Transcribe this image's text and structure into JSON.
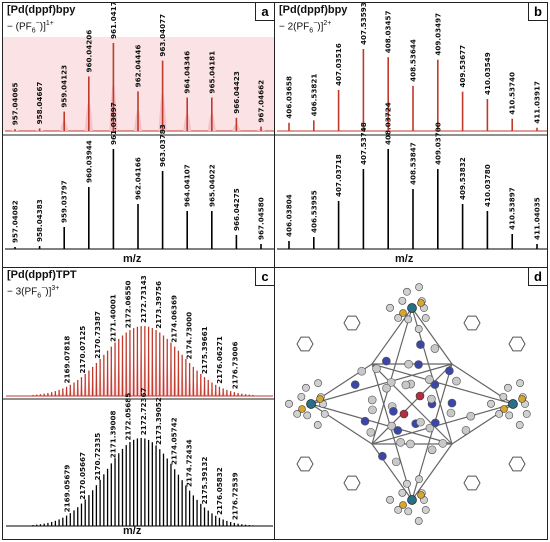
{
  "panels": {
    "a": {
      "letter": "a",
      "title": "[Pd(dppf)bpy",
      "subtitle_pre": "− (PF",
      "subtitle_sub": "6",
      "subtitle_sup_minus": "−",
      "subtitle_post": ")]",
      "charge": "1+"
    },
    "b": {
      "letter": "b",
      "title": "[Pd(dppf)bpy",
      "subtitle_pre": "− 2(PF",
      "subtitle_sub": "6",
      "subtitle_sup_minus": "−",
      "subtitle_post": ")]",
      "charge": "2+"
    },
    "c": {
      "letter": "c",
      "title": "[Pd(dppf)TPT",
      "subtitle_pre": "− 3(PF",
      "subtitle_sub": "6",
      "subtitle_sup_minus": "−",
      "subtitle_post": ")]",
      "charge": "3+"
    },
    "d": {
      "letter": "d"
    }
  },
  "xlabel": "m/z",
  "colors": {
    "experimental": "#c0392b",
    "simulated": "#000000",
    "fill": "#f4c2c6"
  },
  "chart_data": [
    {
      "type": "bar",
      "panel": "a",
      "trace": "experimental",
      "x": [
        957.04065,
        958.04667,
        959.04123,
        960.04206,
        961.04171,
        962.04446,
        963.04077,
        964.04346,
        965.04181,
        966.04423,
        967.04662
      ],
      "values": [
        2,
        3,
        22,
        62,
        100,
        45,
        80,
        38,
        38,
        15,
        5
      ],
      "labels": [
        "957.04065",
        "958.04667",
        "959.04123",
        "960.04206",
        "961.04171",
        "962.04446",
        "963.04077",
        "964.04346",
        "965.04181",
        "966.04423",
        "967.04662"
      ],
      "xlabel": "",
      "ylabel": ""
    },
    {
      "type": "bar",
      "panel": "a",
      "trace": "simulated",
      "x": [
        957.04082,
        958.04383,
        959.03797,
        960.03944,
        961.03897,
        962.04166,
        963.03783,
        964.04107,
        965.04022,
        966.04275,
        967.0458
      ],
      "values": [
        2,
        3,
        22,
        62,
        100,
        45,
        78,
        38,
        38,
        14,
        5
      ],
      "labels": [
        "957.04082",
        "958.04383",
        "959.03797",
        "960.03944",
        "961.03897",
        "962.04166",
        "963.03783",
        "964.04107",
        "965.04022",
        "966.04275",
        "967.04580"
      ],
      "xlabel": "m/z",
      "ylabel": ""
    },
    {
      "type": "bar",
      "panel": "b",
      "trace": "experimental",
      "x": [
        406.03658,
        406.53821,
        407.03516,
        407.53593,
        408.03457,
        408.53644,
        409.03497,
        409.53677,
        410.03549,
        410.5374,
        411.03917
      ],
      "values": [
        10,
        13,
        50,
        100,
        90,
        55,
        87,
        48,
        39,
        15,
        4
      ],
      "labels": [
        "406.03658",
        "406.53821",
        "407.03516",
        "407.53593",
        "408.03457",
        "408.53644",
        "409.03497",
        "409.53677",
        "410.03549",
        "410.53740",
        "411.03917"
      ],
      "xlabel": "",
      "ylabel": ""
    },
    {
      "type": "bar",
      "panel": "b",
      "trace": "simulated",
      "x": [
        406.03804,
        406.53955,
        407.03718,
        407.53748,
        408.03724,
        408.53847,
        409.037,
        409.53832,
        410.0378,
        410.53897,
        411.04035
      ],
      "values": [
        8,
        12,
        48,
        80,
        100,
        60,
        80,
        45,
        38,
        15,
        5
      ],
      "labels": [
        "406.03804",
        "406.53955",
        "407.03718",
        "407.53748",
        "408.03724",
        "408.53847",
        "409.03700",
        "409.53832",
        "410.03780",
        "410.53897",
        "411.04035"
      ],
      "xlabel": "m/z",
      "ylabel": ""
    },
    {
      "type": "line",
      "panel": "c",
      "trace": "experimental",
      "labels": [
        "2169.07818",
        "2170.07125",
        "2170.73387",
        "2171.40001",
        "2172.06550",
        "2172.73143",
        "2173.39756",
        "2174.06369",
        "2174.73000",
        "2175.39661",
        "2176.06271",
        "2176.73006"
      ],
      "envelope_center": 2172.73,
      "spacing": 0.3333,
      "xlabel": "",
      "ylabel": ""
    },
    {
      "type": "line",
      "panel": "c",
      "trace": "simulated",
      "labels": [
        "2169.05679",
        "2170.05667",
        "2170.72335",
        "2171.39008",
        "2172.05685",
        "2172.72367",
        "2173.39052",
        "2174.05742",
        "2174.72434",
        "2175.39132",
        "2176.05832",
        "2176.72539"
      ],
      "envelope_center": 2172.73,
      "spacing": 0.3333,
      "xlabel": "m/z",
      "ylabel": ""
    }
  ]
}
